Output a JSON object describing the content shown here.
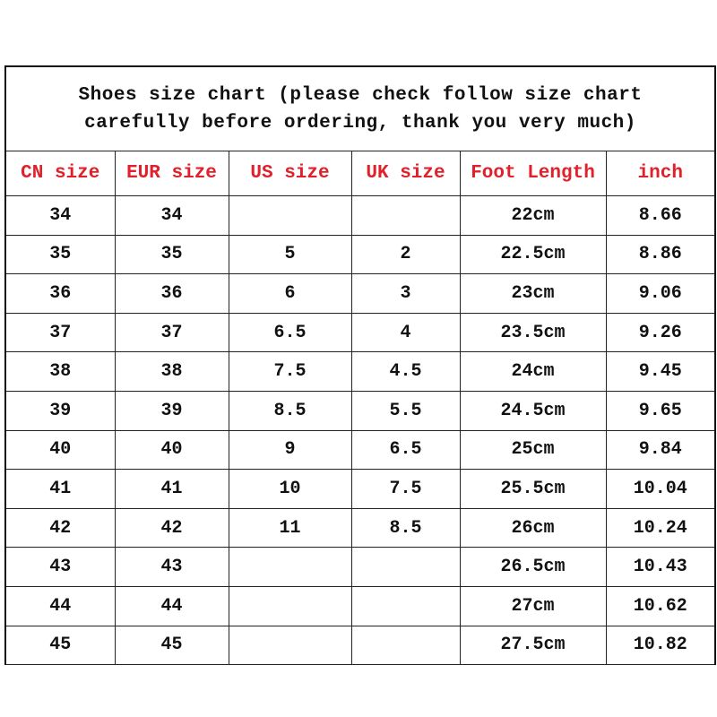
{
  "title_line1": "Shoes size chart (please check follow size chart",
  "title_line2": "carefully before ordering, thank you very much)",
  "header_color": "#e0202a",
  "columns": [
    "CN size",
    "EUR size",
    "US size",
    "UK size",
    "Foot Length",
    "inch"
  ],
  "rows": [
    [
      "34",
      "34",
      "",
      "",
      "22cm",
      "8.66"
    ],
    [
      "35",
      "35",
      "5",
      "2",
      "22.5cm",
      "8.86"
    ],
    [
      "36",
      "36",
      "6",
      "3",
      "23cm",
      "9.06"
    ],
    [
      "37",
      "37",
      "6.5",
      "4",
      "23.5cm",
      "9.26"
    ],
    [
      "38",
      "38",
      "7.5",
      "4.5",
      "24cm",
      "9.45"
    ],
    [
      "39",
      "39",
      "8.5",
      "5.5",
      "24.5cm",
      "9.65"
    ],
    [
      "40",
      "40",
      "9",
      "6.5",
      "25cm",
      "9.84"
    ],
    [
      "41",
      "41",
      "10",
      "7.5",
      "25.5cm",
      "10.04"
    ],
    [
      "42",
      "42",
      "11",
      "8.5",
      "26cm",
      "10.24"
    ],
    [
      "43",
      "43",
      "",
      "",
      "26.5cm",
      "10.43"
    ],
    [
      "44",
      "44",
      "",
      "",
      "27cm",
      "10.62"
    ],
    [
      "45",
      "45",
      "",
      "",
      "27.5cm",
      "10.82"
    ]
  ]
}
